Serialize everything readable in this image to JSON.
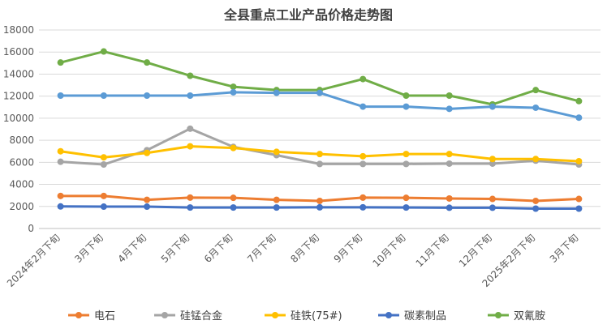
{
  "chart_data": {
    "type": "line",
    "title": "全县重点工业产品价格走势图",
    "xlabel": "",
    "ylabel": "",
    "ylim": [
      0,
      18000
    ],
    "yticks": [
      0,
      2000,
      4000,
      6000,
      8000,
      10000,
      12000,
      14000,
      16000,
      18000
    ],
    "grid": true,
    "legend_position": "bottom",
    "categories": [
      "2024年2月下旬",
      "3月下旬",
      "4月下旬",
      "5月下旬",
      "6月下旬",
      "7月下旬",
      "8月下旬",
      "9月下旬",
      "10月下旬",
      "11月下旬",
      "12月下旬",
      "2025年2月下旬",
      "3月下旬"
    ],
    "series": [
      {
        "name": "电石",
        "color": "#ED7D31",
        "values": [
          2950,
          2950,
          2600,
          2800,
          2780,
          2600,
          2500,
          2800,
          2780,
          2720,
          2680,
          2500,
          2680
        ]
      },
      {
        "name": "硅锰合金",
        "color": "#A5A5A5",
        "values": [
          6050,
          5800,
          7100,
          9050,
          7400,
          6650,
          5850,
          5850,
          5850,
          5880,
          5880,
          6150,
          5800
        ]
      },
      {
        "name": "硅铁(75#)",
        "color": "#FFC000",
        "values": [
          7000,
          6450,
          6850,
          7450,
          7300,
          6950,
          6750,
          6550,
          6750,
          6750,
          6300,
          6300,
          6100
        ]
      },
      {
        "name": "碳素制品",
        "color": "#4472C4",
        "values": [
          2000,
          1980,
          1980,
          1900,
          1900,
          1900,
          1920,
          1920,
          1900,
          1880,
          1880,
          1800,
          1800
        ]
      },
      {
        "name": "双氰胺",
        "color": "#70AD47",
        "values": [
          15050,
          16050,
          15050,
          13850,
          12850,
          12550,
          12550,
          13550,
          12050,
          12050,
          11250,
          12550,
          11550
        ]
      }
    ],
    "extra_series_line": {
      "name": "series-blue-upper",
      "color": "#5B9BD5",
      "values": [
        12050,
        12050,
        12050,
        12050,
        12350,
        12300,
        12300,
        11050,
        11050,
        10850,
        11050,
        10950,
        10050
      ]
    }
  }
}
